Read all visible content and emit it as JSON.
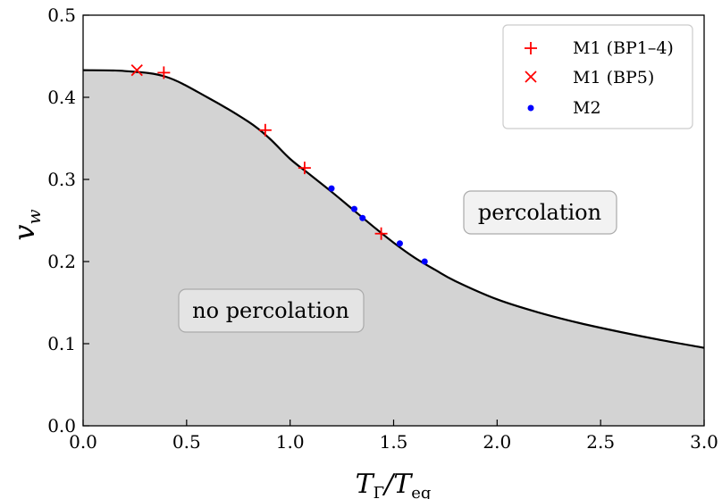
{
  "chart_data": {
    "type": "scatter",
    "xlabel": "T_Γ/T_eq",
    "ylabel": "v_w",
    "xlim": [
      0.0,
      3.0
    ],
    "ylim": [
      0.0,
      0.5
    ],
    "xticks": [
      "0.0",
      "0.5",
      "1.0",
      "1.5",
      "2.0",
      "2.5",
      "3.0"
    ],
    "yticks": [
      "0.0",
      "0.1",
      "0.2",
      "0.3",
      "0.4",
      "0.5"
    ],
    "grid": false,
    "legend_position": "top-right",
    "boundary_curve": {
      "x": [
        0.0,
        0.2,
        0.4,
        0.6,
        0.8,
        0.9,
        1.0,
        1.1,
        1.2,
        1.3,
        1.4,
        1.5,
        1.6,
        1.7,
        1.8,
        2.0,
        2.2,
        2.4,
        2.6,
        2.8,
        3.0
      ],
      "y": [
        0.433,
        0.432,
        0.425,
        0.4,
        0.37,
        0.35,
        0.325,
        0.305,
        0.285,
        0.264,
        0.243,
        0.223,
        0.205,
        0.19,
        0.176,
        0.154,
        0.138,
        0.125,
        0.114,
        0.104,
        0.095
      ],
      "color": "#000000"
    },
    "region_fill_color": "#d3d3d3",
    "series": [
      {
        "name": "M1 (BP1–4)",
        "marker": "plus",
        "color": "#ff0000",
        "x": [
          0.39,
          0.88,
          1.07,
          1.44
        ],
        "y": [
          0.43,
          0.36,
          0.314,
          0.234
        ]
      },
      {
        "name": "M1 (BP5)",
        "marker": "x",
        "color": "#ff0000",
        "x": [
          0.26
        ],
        "y": [
          0.433
        ]
      },
      {
        "name": "M2",
        "marker": "dot",
        "color": "#0000ff",
        "x": [
          1.2,
          1.31,
          1.35,
          1.53,
          1.65
        ],
        "y": [
          0.289,
          0.264,
          0.253,
          0.222,
          0.2
        ]
      }
    ],
    "annotations": {
      "percolation": "percolation",
      "no_percolation": "no percolation"
    }
  }
}
